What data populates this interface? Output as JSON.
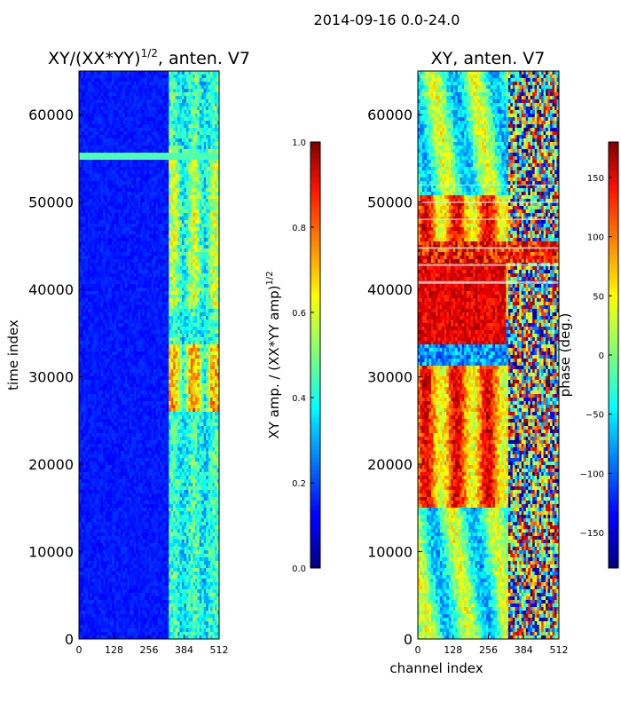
{
  "figure": {
    "suptitle": "2014-09-16 0.0-24.0"
  },
  "chart_data": [
    {
      "type": "heatmap",
      "title_main": "XY/(XX*YY)",
      "title_exp": "1/2",
      "title_suffix": ", anten. V7",
      "xlabel": "",
      "ylabel": "time index",
      "xlim": [
        0,
        512
      ],
      "ylim": [
        0,
        65000
      ],
      "xticks": [
        "0",
        "128",
        "256",
        "384",
        "512"
      ],
      "xtick_values": [
        0,
        128,
        256,
        384,
        512
      ],
      "yticks": [
        "0",
        "10000",
        "20000",
        "30000",
        "40000",
        "50000",
        "60000"
      ],
      "ytick_values": [
        0,
        10000,
        20000,
        30000,
        40000,
        50000,
        60000
      ],
      "colorbar": {
        "label_main": "XY amp. / (XX*YY amp)",
        "label_exp": "1/2",
        "range": [
          0.0,
          1.0
        ],
        "ticks": [
          "0.0",
          "0.2",
          "0.4",
          "0.6",
          "0.8",
          "1.0"
        ],
        "tick_values": [
          0.0,
          0.2,
          0.4,
          0.6,
          0.8,
          1.0
        ]
      }
    },
    {
      "type": "heatmap",
      "title_main": "XY, anten. V7",
      "title_exp": "",
      "title_suffix": "",
      "xlabel": "channel index",
      "ylabel": "",
      "xlim": [
        0,
        512
      ],
      "ylim": [
        0,
        65000
      ],
      "xticks": [
        "0",
        "128",
        "256",
        "384",
        "512"
      ],
      "xtick_values": [
        0,
        128,
        256,
        384,
        512
      ],
      "yticks": [
        "0",
        "10000",
        "20000",
        "30000",
        "40000",
        "50000",
        "60000"
      ],
      "ytick_values": [
        0,
        10000,
        20000,
        30000,
        40000,
        50000,
        60000
      ],
      "colorbar": {
        "label_main": "phase (deg.)",
        "label_exp": "",
        "range": [
          -180,
          180
        ],
        "ticks": [
          "−150",
          "−100",
          "−50",
          "0",
          "50",
          "100",
          "150"
        ],
        "tick_values": [
          -150,
          -100,
          -50,
          0,
          50,
          100,
          150
        ]
      }
    }
  ]
}
